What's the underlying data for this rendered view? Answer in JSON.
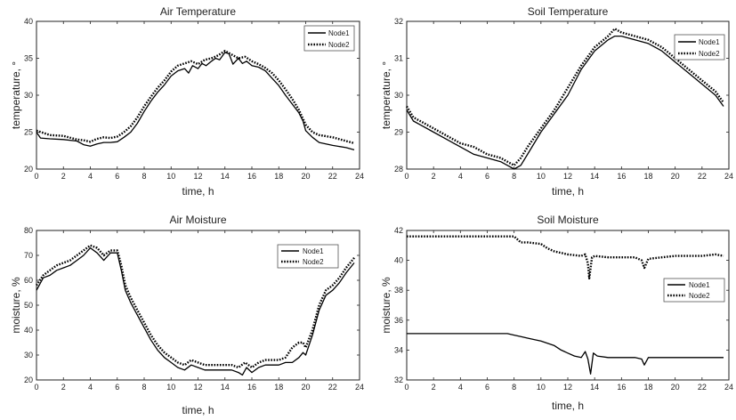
{
  "chart_data": [
    {
      "id": "air-temperature",
      "type": "line",
      "title": "Air Temperature",
      "xlabel": "time, h",
      "ylabel": "temperature, °",
      "xlim": [
        0,
        24
      ],
      "ylim": [
        20,
        40
      ],
      "xticks": [
        0,
        2,
        4,
        6,
        8,
        10,
        12,
        14,
        16,
        18,
        20,
        22,
        24
      ],
      "yticks": [
        20,
        25,
        30,
        35,
        40
      ],
      "grid": false,
      "legend": "top-right",
      "series": [
        {
          "name": "Node1",
          "style": "solid",
          "x": [
            0,
            0.3,
            1,
            2,
            3,
            3.5,
            4,
            4.5,
            5,
            5.5,
            6,
            6.5,
            7,
            7.5,
            8,
            8.5,
            9,
            9.5,
            10,
            10.5,
            11,
            11.3,
            11.6,
            12,
            12.3,
            12.6,
            13,
            13.3,
            13.6,
            14,
            14.3,
            14.6,
            15,
            15.3,
            15.6,
            16,
            16.5,
            17,
            17.5,
            18,
            18.5,
            19,
            19.5,
            19.8,
            20,
            20.5,
            21,
            22,
            23,
            23.6
          ],
          "y": [
            25,
            24.2,
            24.1,
            24.0,
            23.8,
            23.3,
            23.1,
            23.4,
            23.6,
            23.6,
            23.7,
            24.3,
            25.0,
            26.2,
            27.8,
            29.2,
            30.4,
            31.4,
            32.6,
            33.3,
            33.6,
            33.0,
            34.0,
            33.6,
            34.3,
            34.0,
            34.6,
            35.0,
            34.8,
            35.8,
            35.6,
            34.2,
            35.0,
            34.3,
            34.6,
            34.0,
            33.8,
            33.3,
            32.3,
            31.3,
            30.0,
            28.8,
            27.6,
            26.5,
            25.2,
            24.3,
            23.6,
            23.2,
            22.9,
            22.6
          ]
        },
        {
          "name": "Node2",
          "style": "dotted",
          "x": [
            0,
            0.5,
            1,
            2,
            3,
            3.5,
            4,
            4.5,
            5,
            5.5,
            6,
            6.5,
            7,
            7.5,
            8,
            8.5,
            9,
            9.5,
            10,
            10.5,
            11,
            11.5,
            12,
            12.5,
            13,
            13.5,
            14,
            14.5,
            15,
            15.5,
            16,
            16.5,
            17,
            17.5,
            18,
            18.5,
            19,
            19.5,
            20,
            20.5,
            21,
            22,
            23,
            23.6
          ],
          "y": [
            25.2,
            24.9,
            24.6,
            24.5,
            24.0,
            23.9,
            23.7,
            24.1,
            24.3,
            24.2,
            24.4,
            25.0,
            25.8,
            27.0,
            28.5,
            29.8,
            31.0,
            32.0,
            33.2,
            34.0,
            34.3,
            34.6,
            34.2,
            34.8,
            35.0,
            35.4,
            36.0,
            35.5,
            35.0,
            35.2,
            34.6,
            34.2,
            33.7,
            33.0,
            32.0,
            30.8,
            29.5,
            28.0,
            26.0,
            25.0,
            24.6,
            24.3,
            23.8,
            23.5
          ]
        }
      ]
    },
    {
      "id": "soil-temperature",
      "type": "line",
      "title": "Soil Temperature",
      "xlabel": "time, h",
      "ylabel": "temperature, °",
      "xlim": [
        0,
        24
      ],
      "ylim": [
        28,
        32
      ],
      "xticks": [
        0,
        2,
        4,
        6,
        8,
        10,
        12,
        14,
        16,
        18,
        20,
        22,
        24
      ],
      "yticks": [
        28,
        29,
        30,
        31,
        32
      ],
      "grid": false,
      "legend": "top-right",
      "series": [
        {
          "name": "Node1",
          "style": "solid",
          "x": [
            0,
            0.5,
            1,
            2,
            3,
            4,
            5,
            6,
            7,
            7.5,
            8,
            8.5,
            9,
            10,
            11,
            12,
            13,
            14,
            15,
            15.5,
            16,
            17,
            18,
            19,
            20,
            21,
            22,
            23,
            23.6
          ],
          "y": [
            29.6,
            29.3,
            29.2,
            29.0,
            28.8,
            28.6,
            28.4,
            28.3,
            28.2,
            28.1,
            28.0,
            28.1,
            28.4,
            29.0,
            29.5,
            30.0,
            30.7,
            31.2,
            31.5,
            31.6,
            31.6,
            31.5,
            31.4,
            31.2,
            30.9,
            30.6,
            30.3,
            30.0,
            29.7
          ]
        },
        {
          "name": "Node2",
          "style": "dotted",
          "x": [
            0,
            0.5,
            1,
            2,
            3,
            4,
            5,
            6,
            7,
            7.5,
            8,
            8.5,
            9,
            10,
            11,
            12,
            13,
            14,
            15,
            15.5,
            16,
            17,
            18,
            19,
            20,
            21,
            22,
            23,
            23.6
          ],
          "y": [
            29.7,
            29.4,
            29.3,
            29.1,
            28.9,
            28.7,
            28.6,
            28.4,
            28.3,
            28.2,
            28.1,
            28.3,
            28.6,
            29.1,
            29.6,
            30.2,
            30.8,
            31.3,
            31.6,
            31.8,
            31.7,
            31.6,
            31.5,
            31.3,
            31.0,
            30.7,
            30.4,
            30.1,
            29.8
          ]
        }
      ]
    },
    {
      "id": "air-moisture",
      "type": "line",
      "title": "Air Moisture",
      "xlabel": "time, h",
      "ylabel": "moisture, %",
      "xlim": [
        0,
        24
      ],
      "ylim": [
        20,
        80
      ],
      "xticks": [
        0,
        2,
        4,
        6,
        8,
        10,
        12,
        14,
        16,
        18,
        20,
        22,
        24
      ],
      "yticks": [
        20,
        30,
        40,
        50,
        60,
        70,
        80
      ],
      "grid": false,
      "legend": "top-right",
      "series": [
        {
          "name": "Node1",
          "style": "solid",
          "x": [
            0,
            0.5,
            1,
            1.5,
            2,
            2.5,
            3,
            3.5,
            4,
            4.5,
            5,
            5.5,
            6,
            6.3,
            6.6,
            7,
            7.5,
            8,
            8.5,
            9,
            9.5,
            10,
            10.5,
            11,
            11.5,
            12,
            12.5,
            13,
            13.5,
            14,
            14.5,
            15,
            15.3,
            15.6,
            16,
            16.5,
            17,
            17.5,
            18,
            18.5,
            19,
            19.5,
            19.8,
            20,
            20.5,
            21,
            21.5,
            22,
            22.5,
            23,
            23.6
          ],
          "y": [
            56,
            61,
            62,
            64,
            65,
            66,
            68,
            70,
            73,
            71,
            68,
            71,
            71,
            64,
            56,
            51,
            46,
            41,
            36,
            32,
            29,
            27,
            25,
            24,
            26,
            25,
            24,
            24,
            24,
            24,
            24,
            23,
            22,
            25,
            23,
            25,
            26,
            26,
            26,
            27,
            27,
            29,
            31,
            30,
            38,
            48,
            54,
            56,
            59,
            63,
            67
          ]
        },
        {
          "name": "Node2",
          "style": "dotted",
          "x": [
            0,
            0.5,
            1,
            1.5,
            2,
            2.5,
            3,
            3.5,
            4,
            4.5,
            5,
            5.5,
            6,
            6.3,
            6.6,
            7,
            7.5,
            8,
            8.5,
            9,
            9.5,
            10,
            10.5,
            11,
            11.5,
            12,
            12.5,
            13,
            13.5,
            14,
            14.5,
            15,
            15.5,
            16,
            16.5,
            17,
            17.5,
            18,
            18.5,
            19,
            19.5,
            19.8,
            20,
            20.5,
            21,
            21.5,
            22,
            22.5,
            23,
            23.6
          ],
          "y": [
            58,
            62,
            64,
            66,
            67,
            68,
            70,
            72,
            74,
            73,
            70,
            72,
            72,
            66,
            58,
            53,
            48,
            43,
            38,
            34,
            31,
            29,
            27,
            26,
            28,
            27,
            26,
            26,
            26,
            26,
            26,
            25,
            27,
            25,
            27,
            28,
            28,
            28,
            29,
            33,
            35,
            35,
            33,
            40,
            50,
            56,
            58,
            61,
            65,
            69
          ]
        }
      ]
    },
    {
      "id": "soil-moisture",
      "type": "line",
      "title": "Soil Moisture",
      "xlabel": "time, h",
      "ylabel": "moisture, %",
      "xlim": [
        0,
        24
      ],
      "ylim": [
        32,
        42
      ],
      "xticks": [
        0,
        2,
        4,
        6,
        8,
        10,
        12,
        14,
        16,
        18,
        20,
        22,
        24
      ],
      "yticks": [
        32,
        34,
        36,
        38,
        40,
        42
      ],
      "grid": false,
      "legend": "middle-right",
      "series": [
        {
          "name": "Node1",
          "style": "solid",
          "x": [
            0,
            2,
            4,
            6,
            7.5,
            8,
            8.5,
            9,
            10,
            11,
            11.5,
            12,
            12.5,
            13,
            13.3,
            13.5,
            13.7,
            13.9,
            14.2,
            15,
            16,
            17,
            17.5,
            17.7,
            18,
            19,
            20,
            21,
            22,
            23,
            23.6
          ],
          "y": [
            35.1,
            35.1,
            35.1,
            35.1,
            35.1,
            35.0,
            34.9,
            34.8,
            34.6,
            34.3,
            34.0,
            33.8,
            33.6,
            33.5,
            33.9,
            33.4,
            32.4,
            33.8,
            33.6,
            33.5,
            33.5,
            33.5,
            33.4,
            33.0,
            33.5,
            33.5,
            33.5,
            33.5,
            33.5,
            33.5,
            33.5
          ]
        },
        {
          "name": "Node2",
          "style": "dotted",
          "x": [
            0,
            2,
            4,
            6,
            8,
            8.5,
            9,
            10,
            10.5,
            11,
            12,
            13,
            13.3,
            13.5,
            13.6,
            13.8,
            14,
            15,
            16,
            17,
            17.5,
            17.7,
            18,
            19,
            20,
            21,
            22,
            23,
            23.6
          ],
          "y": [
            41.6,
            41.6,
            41.6,
            41.6,
            41.6,
            41.2,
            41.2,
            41.1,
            40.8,
            40.6,
            40.4,
            40.3,
            40.4,
            39.8,
            38.8,
            40.2,
            40.3,
            40.2,
            40.2,
            40.2,
            40.0,
            39.5,
            40.1,
            40.2,
            40.3,
            40.3,
            40.3,
            40.4,
            40.3
          ]
        }
      ]
    }
  ]
}
